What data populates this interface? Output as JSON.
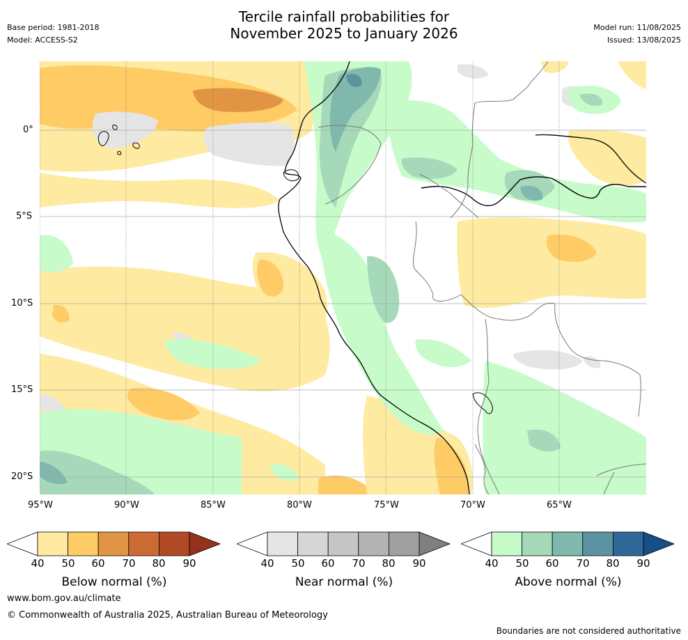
{
  "header": {
    "title_line1": "Tercile rainfall probabilities for",
    "title_line2": "November 2025 to January 2026",
    "base_period": "Base period: 1981-2018",
    "model": "Model: ACCESS-S2",
    "model_run": "Model run: 11/08/2025",
    "issued": "Issued: 13/08/2025"
  },
  "axes": {
    "lon_ticks": [
      "95°W",
      "90°W",
      "85°W",
      "80°W",
      "75°W",
      "70°W",
      "65°W"
    ],
    "lat_ticks": [
      "0°",
      "5°S",
      "10°S",
      "15°S",
      "20°S"
    ]
  },
  "legend": {
    "below": {
      "label": "Below normal (%)",
      "ticks": [
        "40",
        "50",
        "60",
        "70",
        "80",
        "90"
      ],
      "colors": [
        "#ffffff",
        "#feeaa0",
        "#fecb65",
        "#e29445",
        "#cc6a33",
        "#b04a26",
        "#94321c"
      ]
    },
    "near": {
      "label": "Near normal (%)",
      "ticks": [
        "40",
        "50",
        "60",
        "70",
        "80",
        "90"
      ],
      "colors": [
        "#ffffff",
        "#e5e5e5",
        "#d6d6d6",
        "#c6c6c6",
        "#b3b3b3",
        "#a0a0a0",
        "#7f7f7f"
      ]
    },
    "above": {
      "label": "Above normal (%)",
      "ticks": [
        "40",
        "50",
        "60",
        "70",
        "80",
        "90"
      ],
      "colors": [
        "#ffffff",
        "#c7fcca",
        "#a5d9b9",
        "#81b8ad",
        "#5c93a0",
        "#2e6898",
        "#164e86"
      ]
    }
  },
  "footer": {
    "website": "www.bom.gov.au/climate",
    "copyright": "© Commonwealth of Australia 2025, Australian Bureau of Meteorology",
    "disclaimer": "Boundaries are not considered authoritative"
  }
}
